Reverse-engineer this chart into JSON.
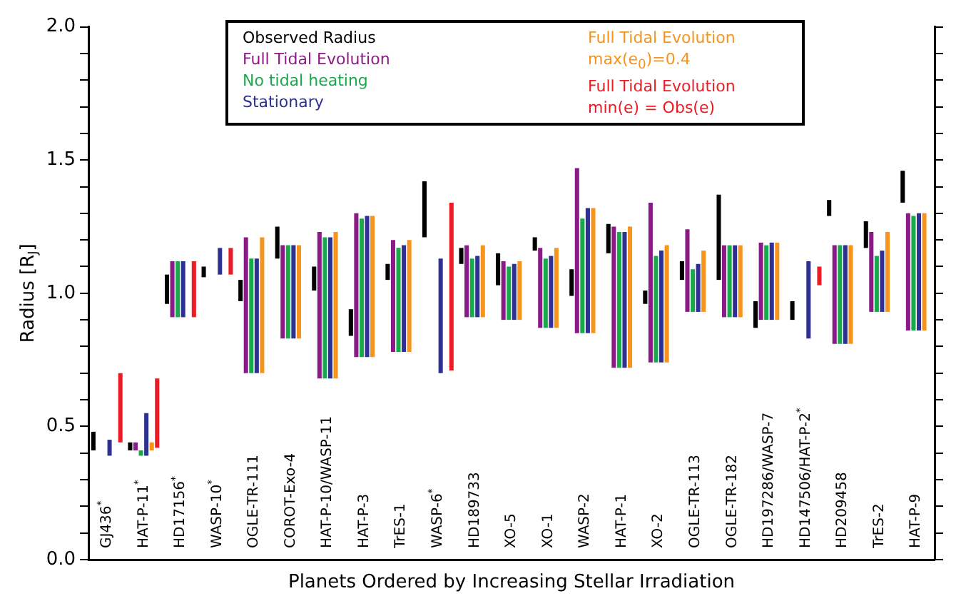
{
  "chart_data": {
    "type": "bar",
    "xlabel": "Planets Ordered by Increasing Stellar Irradiation",
    "ylabel": "Radius [R$_{J}$]",
    "categories": [
      "GJ436$^{*}$",
      "HAT-P-11$^{*}$",
      "HD17156$^{*}$",
      "WASP-10$^{*}$",
      "OGLE-TR-111",
      "COROT-Exo-4",
      "HAT-P-10/WASP-11",
      "HAT-P-3",
      "TrES-1",
      "WASP-6$^{*}$",
      "HD189733",
      "XO-5",
      "XO-1",
      "WASP-2",
      "HAT-P-1",
      "XO-2",
      "OGLE-TR-113",
      "OGLE-TR-182",
      "HD197286/WASP-7",
      "HD147506/HAT-P-2$^{*}$",
      "HD209458",
      "TrES-2",
      "HAT-P-9"
    ],
    "ylim": [
      0,
      2
    ],
    "yticks": [
      {
        "value": 0,
        "label": "0.0"
      },
      {
        "value": 0.1,
        "label": null
      },
      {
        "value": 0.2,
        "label": null
      },
      {
        "value": 0.3,
        "label": null
      },
      {
        "value": 0.4,
        "label": null
      },
      {
        "value": 0.5,
        "label": "0.5"
      },
      {
        "value": 0.6,
        "label": null
      },
      {
        "value": 0.7,
        "label": null
      },
      {
        "value": 0.8,
        "label": null
      },
      {
        "value": 0.9,
        "label": null
      },
      {
        "value": 1,
        "label": "1.0"
      },
      {
        "value": 1.1,
        "label": null
      },
      {
        "value": 1.2,
        "label": null
      },
      {
        "value": 1.3,
        "label": null
      },
      {
        "value": 1.4,
        "label": null
      },
      {
        "value": 1.5,
        "label": "1.5"
      },
      {
        "value": 1.6,
        "label": null
      },
      {
        "value": 1.7,
        "label": null
      },
      {
        "value": 1.8,
        "label": null
      },
      {
        "value": 1.9,
        "label": null
      },
      {
        "value": 2,
        "label": "2.0"
      }
    ],
    "grid": false,
    "legend": "top",
    "series": [
      {
        "name": "Observed Radius",
        "color": "#000000",
        "base": [
          0.41,
          0.41,
          0.96,
          1.06,
          0.97,
          1.13,
          1.01,
          0.84,
          1.05,
          1.21,
          1.11,
          1.03,
          1.16,
          0.99,
          1.15,
          0.96,
          1.05,
          1.05,
          0.87,
          0.9,
          1.29,
          1.17,
          1.34
        ],
        "values": [
          0.07,
          0.03,
          0.11,
          0.04,
          0.08,
          0.12,
          0.09,
          0.1,
          0.06,
          0.21,
          0.06,
          0.12,
          0.05,
          0.1,
          0.11,
          0.05,
          0.07,
          0.32,
          0.1,
          0.07,
          0.06,
          0.1,
          0.12
        ]
      },
      {
        "name": "Full Tidal Evolution",
        "color": "#8b1a89",
        "base": [
          null,
          0.41,
          0.91,
          null,
          0.7,
          0.83,
          0.68,
          0.76,
          0.78,
          null,
          0.91,
          0.9,
          0.87,
          0.85,
          0.72,
          0.74,
          0.93,
          0.91,
          0.9,
          null,
          0.81,
          0.93,
          0.86
        ],
        "values": [
          null,
          0.03,
          0.21,
          null,
          0.51,
          0.35,
          0.55,
          0.54,
          0.42,
          null,
          0.27,
          0.22,
          0.3,
          0.62,
          0.53,
          0.6,
          0.31,
          0.27,
          0.29,
          null,
          0.37,
          0.3,
          0.44
        ]
      },
      {
        "name": "No tidal heating",
        "color": "#1aa84c",
        "base": [
          null,
          0.39,
          0.91,
          null,
          0.7,
          0.83,
          0.68,
          0.76,
          0.78,
          null,
          0.91,
          0.9,
          0.87,
          0.85,
          0.72,
          0.74,
          0.93,
          0.91,
          0.9,
          null,
          0.81,
          0.93,
          0.86
        ],
        "values": [
          null,
          0.02,
          0.21,
          null,
          0.43,
          0.35,
          0.53,
          0.52,
          0.39,
          null,
          0.22,
          0.2,
          0.26,
          0.43,
          0.51,
          0.4,
          0.16,
          0.27,
          0.28,
          null,
          0.37,
          0.21,
          0.43
        ]
      },
      {
        "name": "Stationary",
        "color": "#2e3192",
        "base": [
          0.39,
          0.39,
          0.91,
          1.07,
          0.7,
          0.83,
          0.68,
          0.76,
          0.78,
          0.7,
          0.91,
          0.9,
          0.87,
          0.85,
          0.72,
          0.74,
          0.93,
          0.91,
          0.9,
          0.83,
          0.81,
          0.93,
          0.86
        ],
        "values": [
          0.06,
          0.16,
          0.21,
          0.1,
          0.43,
          0.35,
          0.53,
          0.53,
          0.4,
          0.43,
          0.23,
          0.21,
          0.27,
          0.47,
          0.51,
          0.42,
          0.18,
          0.27,
          0.29,
          0.29,
          0.37,
          0.23,
          0.44
        ]
      },
      {
        "name": "Full Tidal Evolution max(e$_{0}$)=0.4",
        "color": "#f7941d",
        "base": [
          null,
          0.41,
          null,
          null,
          0.7,
          0.83,
          0.68,
          0.76,
          0.78,
          null,
          0.91,
          0.9,
          0.87,
          0.85,
          0.72,
          0.74,
          0.93,
          0.91,
          0.9,
          null,
          0.81,
          0.93,
          0.86
        ],
        "values": [
          null,
          0.03,
          null,
          null,
          0.51,
          0.35,
          0.55,
          0.53,
          0.42,
          null,
          0.27,
          0.22,
          0.3,
          0.47,
          0.53,
          0.44,
          0.23,
          0.27,
          0.29,
          null,
          0.37,
          0.3,
          0.44
        ]
      },
      {
        "name": "Full Tidal Evolution min(e) = Obs(e)",
        "color": "#ed1c24",
        "base": [
          0.44,
          0.42,
          0.91,
          1.07,
          null,
          null,
          null,
          null,
          null,
          0.71,
          null,
          null,
          null,
          null,
          null,
          null,
          null,
          null,
          null,
          1.03,
          null,
          null,
          null
        ],
        "values": [
          0.26,
          0.26,
          0.21,
          0.1,
          null,
          null,
          null,
          null,
          null,
          0.63,
          null,
          null,
          null,
          null,
          null,
          null,
          null,
          null,
          null,
          0.07,
          null,
          null,
          null
        ]
      }
    ]
  }
}
